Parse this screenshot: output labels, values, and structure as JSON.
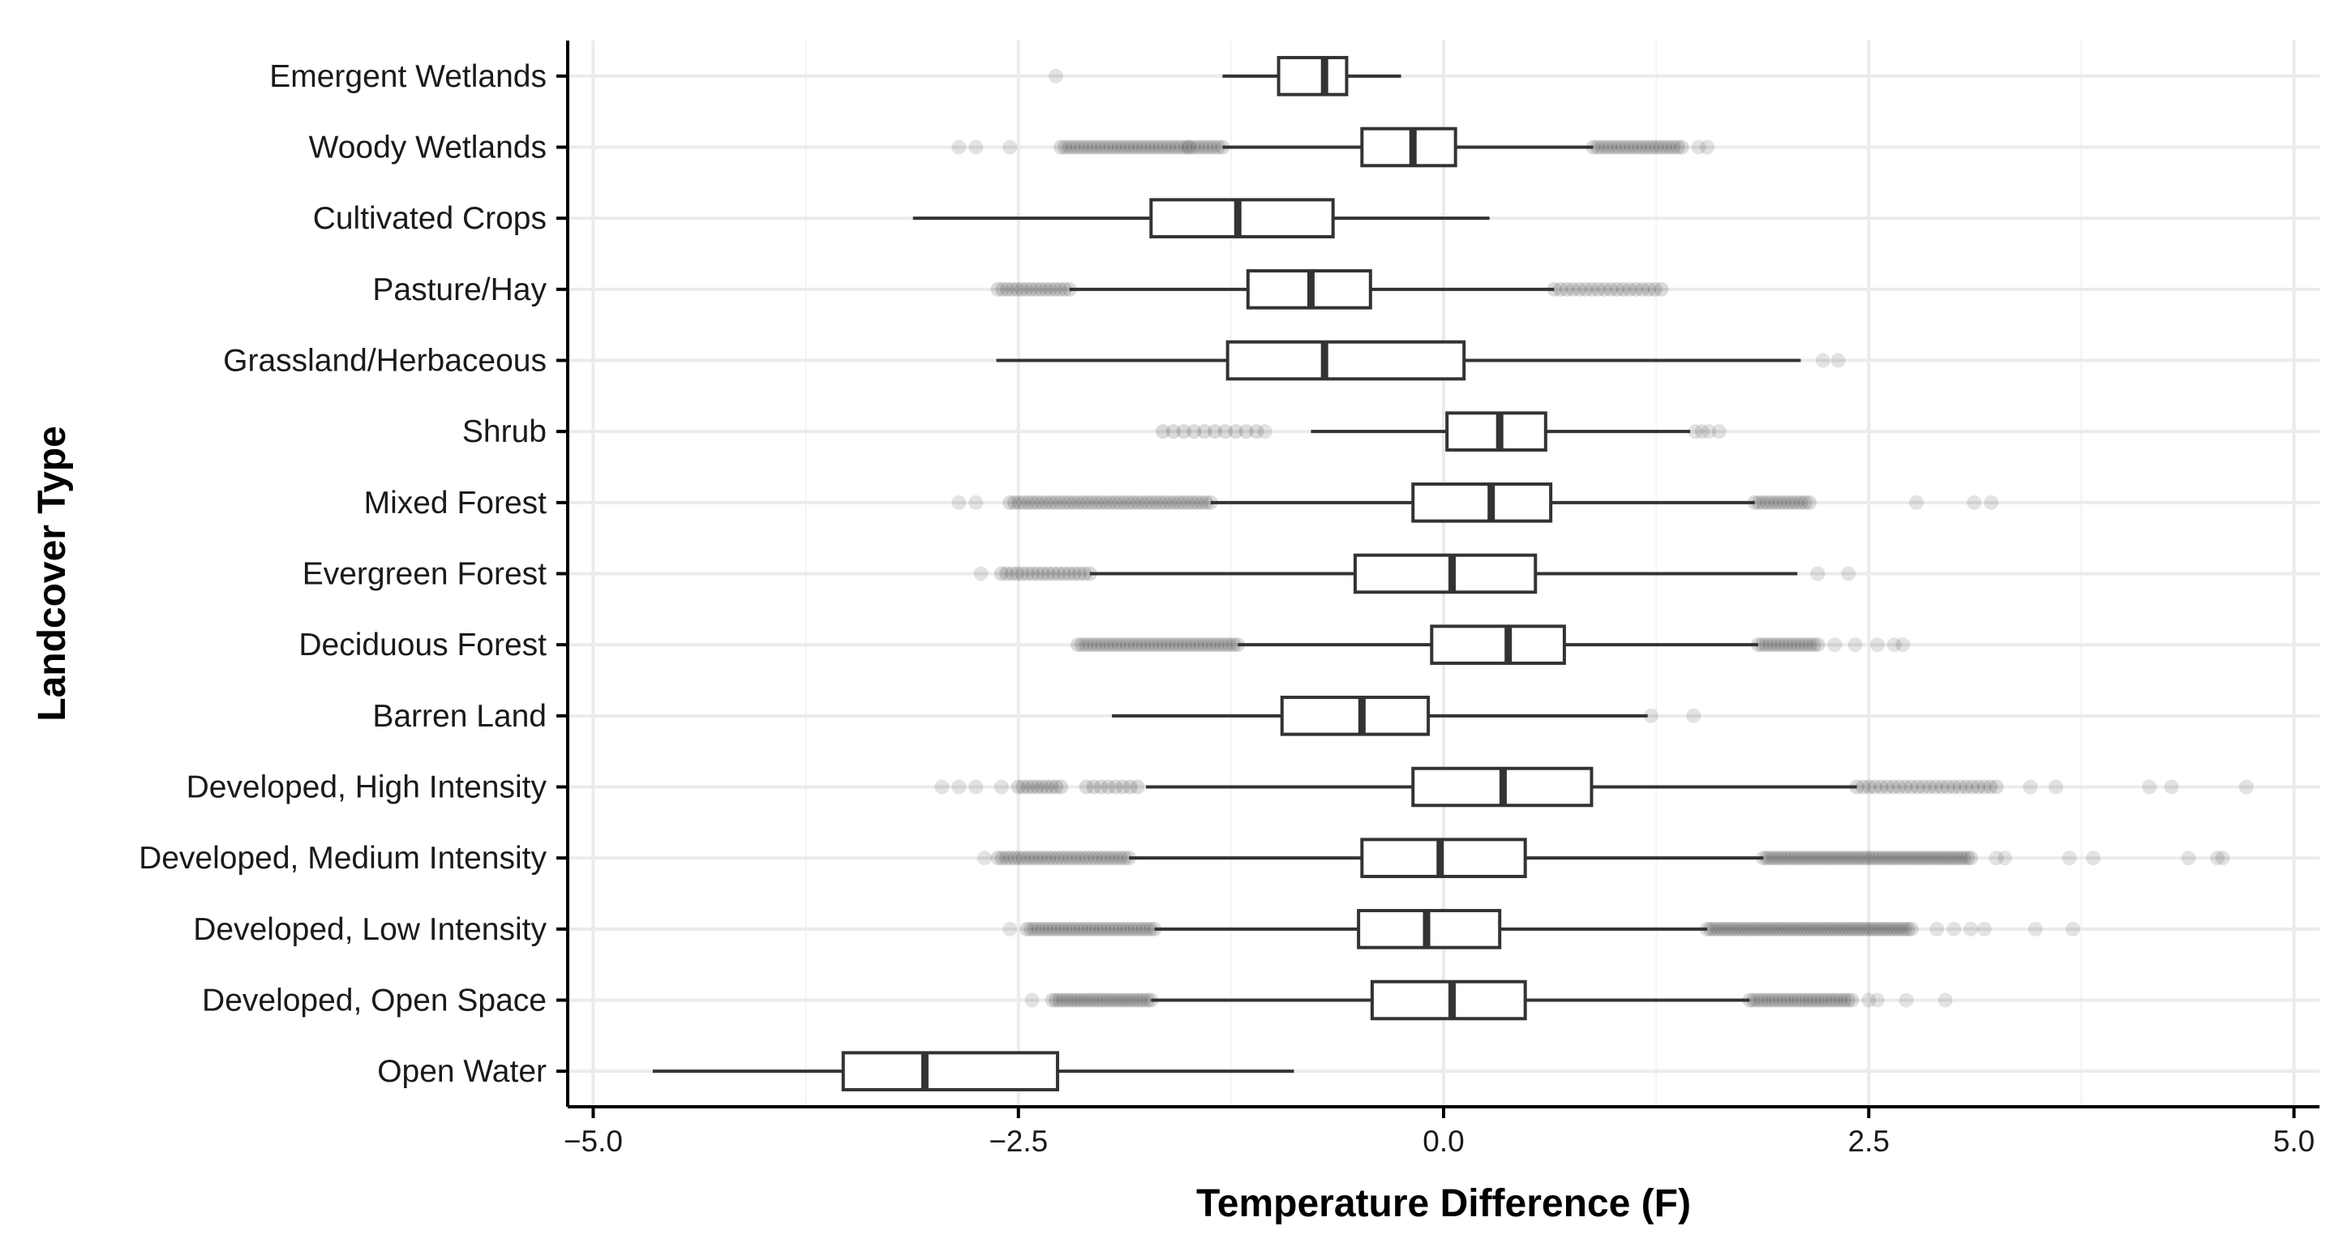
{
  "chart_data": {
    "type": "boxplot",
    "orientation": "horizontal",
    "title": "",
    "xlabel": "Temperature Difference (F)",
    "ylabel": "Landcover Type",
    "xlim": [
      -5.15,
      5.15
    ],
    "xticks": [
      -5.0,
      -2.5,
      0.0,
      2.5,
      5.0
    ],
    "xtick_labels": [
      "−5.0",
      "−2.5",
      "0.0",
      "2.5",
      "5.0"
    ],
    "grid": true,
    "colors": {
      "box": "#333333",
      "outlier": "#3a3a3a",
      "grid": "#ebebeb",
      "axis": "#000000"
    },
    "categories": [
      "Emergent Wetlands",
      "Woody Wetlands",
      "Cultivated Crops",
      "Pasture/Hay",
      "Grassland/Herbaceous",
      "Shrub",
      "Mixed Forest",
      "Evergreen Forest",
      "Deciduous Forest",
      "Barren Land",
      "Developed, High Intensity",
      "Developed, Medium Intensity",
      "Developed, Low Intensity",
      "Developed, Open Space",
      "Open Water"
    ],
    "boxes": [
      {
        "name": "Emergent Wetlands",
        "whisker_low": -1.3,
        "q1": -0.97,
        "median": -0.7,
        "q3": -0.57,
        "whisker_high": -0.25,
        "outliers": [
          -2.28
        ]
      },
      {
        "name": "Woody Wetlands",
        "whisker_low": -1.3,
        "q1": -0.48,
        "median": -0.18,
        "q3": 0.07,
        "whisker_high": 0.88,
        "outlier_bands": [
          [
            -2.25,
            -1.3,
            40
          ],
          [
            0.88,
            1.4,
            22
          ]
        ],
        "outliers": [
          -2.85,
          -2.75,
          -2.55,
          -1.5,
          1.5,
          1.55
        ]
      },
      {
        "name": "Cultivated Crops",
        "whisker_low": -3.12,
        "q1": -1.72,
        "median": -1.21,
        "q3": -0.65,
        "whisker_high": 0.27
      },
      {
        "name": "Pasture/Hay",
        "whisker_low": -2.2,
        "q1": -1.15,
        "median": -0.78,
        "q3": -0.43,
        "whisker_high": 0.65,
        "outlier_bands": [
          [
            -2.62,
            -2.2,
            16
          ],
          [
            0.65,
            1.28,
            18
          ]
        ]
      },
      {
        "name": "Grassland/Herbaceous",
        "whisker_low": -2.63,
        "q1": -1.27,
        "median": -0.7,
        "q3": 0.12,
        "whisker_high": 2.1,
        "outliers": [
          2.23,
          2.32
        ]
      },
      {
        "name": "Shrub",
        "whisker_low": -0.78,
        "q1": 0.02,
        "median": 0.33,
        "q3": 0.6,
        "whisker_high": 1.45,
        "outlier_bands": [
          [
            -1.65,
            -1.1,
            10
          ]
        ],
        "outliers": [
          -1.05,
          1.48,
          1.52,
          1.56,
          1.62
        ]
      },
      {
        "name": "Mixed Forest",
        "whisker_low": -1.37,
        "q1": -0.18,
        "median": 0.28,
        "q3": 0.63,
        "whisker_high": 1.83,
        "outlier_bands": [
          [
            -2.55,
            -1.37,
            45
          ],
          [
            1.83,
            2.15,
            14
          ]
        ],
        "outliers": [
          -2.85,
          -2.75,
          2.78,
          3.12,
          3.22
        ]
      },
      {
        "name": "Evergreen Forest",
        "whisker_low": -2.08,
        "q1": -0.52,
        "median": 0.05,
        "q3": 0.54,
        "whisker_high": 2.08,
        "outlier_bands": [
          [
            -2.6,
            -2.08,
            18
          ]
        ],
        "outliers": [
          -2.72,
          2.2,
          2.38
        ]
      },
      {
        "name": "Deciduous Forest",
        "whisker_low": -1.21,
        "q1": -0.07,
        "median": 0.38,
        "q3": 0.71,
        "whisker_high": 1.85,
        "outlier_bands": [
          [
            -2.15,
            -1.21,
            40
          ],
          [
            1.85,
            2.2,
            16
          ]
        ],
        "outliers": [
          2.3,
          2.42,
          2.55,
          2.65,
          2.7
        ]
      },
      {
        "name": "Barren Land",
        "whisker_low": -1.95,
        "q1": -0.95,
        "median": -0.48,
        "q3": -0.09,
        "whisker_high": 1.2,
        "outliers": [
          1.22,
          1.47
        ]
      },
      {
        "name": "Developed, High Intensity",
        "whisker_low": -1.75,
        "q1": -0.18,
        "median": 0.35,
        "q3": 0.87,
        "whisker_high": 2.43,
        "outlier_bands": [
          [
            -2.5,
            -2.25,
            10
          ],
          [
            -2.1,
            -1.8,
            8
          ],
          [
            2.43,
            3.25,
            24
          ]
        ],
        "outliers": [
          -2.95,
          -2.85,
          -2.75,
          -2.6,
          3.45,
          3.6,
          4.15,
          4.28,
          4.72
        ]
      },
      {
        "name": "Developed, Medium Intensity",
        "whisker_low": -1.85,
        "q1": -0.48,
        "median": -0.02,
        "q3": 0.48,
        "whisker_high": 1.88,
        "outlier_bands": [
          [
            -2.62,
            -1.85,
            32
          ],
          [
            1.88,
            3.1,
            60
          ]
        ],
        "outliers": [
          -2.7,
          3.25,
          3.3,
          3.68,
          3.82,
          4.38,
          4.55,
          4.58
        ]
      },
      {
        "name": "Developed, Low Intensity",
        "whisker_low": -1.7,
        "q1": -0.5,
        "median": -0.1,
        "q3": 0.33,
        "whisker_high": 1.55,
        "outlier_bands": [
          [
            -2.45,
            -1.7,
            34
          ],
          [
            1.55,
            2.75,
            60
          ]
        ],
        "outliers": [
          -2.55,
          2.9,
          3.0,
          3.1,
          3.18,
          3.48,
          3.7
        ]
      },
      {
        "name": "Developed, Open Space",
        "whisker_low": -1.72,
        "q1": -0.42,
        "median": 0.05,
        "q3": 0.48,
        "whisker_high": 1.8,
        "outlier_bands": [
          [
            -2.3,
            -1.72,
            28
          ],
          [
            1.8,
            2.4,
            28
          ]
        ],
        "outliers": [
          -2.42,
          2.5,
          2.55,
          2.72,
          2.95
        ]
      },
      {
        "name": "Open Water",
        "whisker_low": -4.65,
        "q1": -3.53,
        "median": -3.05,
        "q3": -2.27,
        "whisker_high": -0.88
      }
    ]
  }
}
